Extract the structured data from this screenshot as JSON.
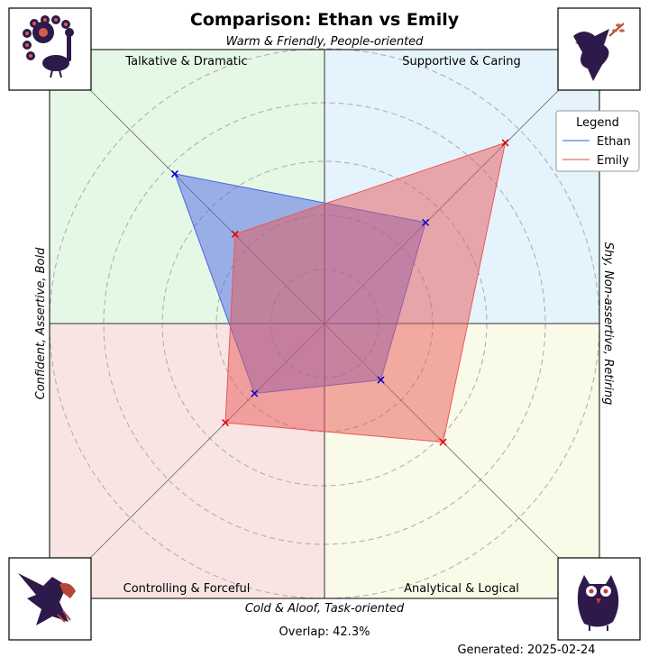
{
  "chart_data": {
    "type": "radar",
    "title": "Comparison: Ethan vs Emily",
    "axis_labels": {
      "top": "Warm & Friendly, People-oriented",
      "bottom": "Cold & Aloof, Task-oriented",
      "left": "Confident, Assertive, Bold",
      "right": "Shy, Non-assertive, Retiring"
    },
    "quadrants": [
      {
        "label": "Talkative & Dramatic",
        "position": "top-left",
        "color": "#e5f8e5"
      },
      {
        "label": "Supportive & Caring",
        "position": "top-right",
        "color": "#e4f3fc"
      },
      {
        "label": "Controlling & Forceful",
        "position": "bottom-left",
        "color": "#f9e4e4"
      },
      {
        "label": "Analytical & Logical",
        "position": "bottom-right",
        "color": "#fafae8"
      }
    ],
    "icons": [
      {
        "name": "peacock-icon",
        "position": "top-left"
      },
      {
        "name": "dove-icon",
        "position": "top-right"
      },
      {
        "name": "eagle-icon",
        "position": "bottom-left"
      },
      {
        "name": "owl-icon",
        "position": "bottom-right"
      }
    ],
    "directions": [
      "Talkative & Dramatic",
      "Supportive & Caring",
      "Analytical & Logical",
      "Controlling & Forceful"
    ],
    "series": [
      {
        "name": "Ethan",
        "color": "#4d64e6",
        "values": [
          77,
          52,
          29,
          36
        ]
      },
      {
        "name": "Emily",
        "color": "#e85858",
        "values": [
          46,
          93,
          61,
          51
        ]
      }
    ],
    "range": [
      0,
      100
    ],
    "grid": true,
    "legend": {
      "title": "Legend",
      "position": "top-right"
    },
    "overlap": "Overlap: 42.3%",
    "generated": "Generated: 2025-02-24"
  }
}
